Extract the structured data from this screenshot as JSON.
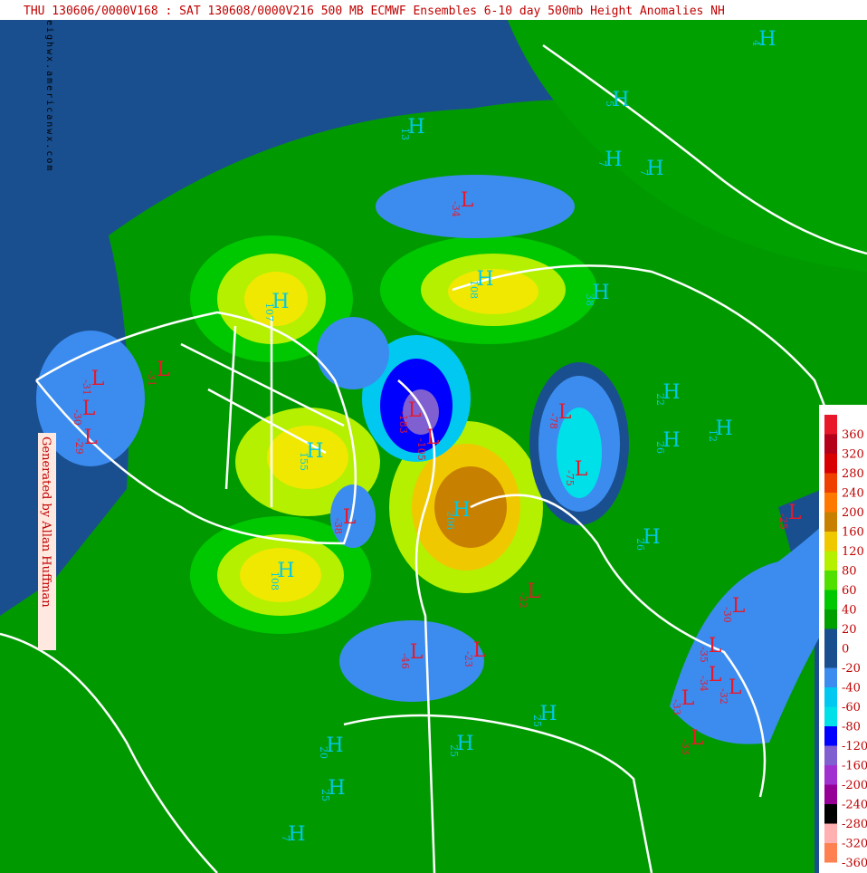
{
  "header": {
    "title": "THU 130606/0000V168 : SAT 130608/0000V216  500 MB ECMWF Ensembles 6-10 day 500mb Height Anomalies NH"
  },
  "credits": {
    "site": "eighwx.americanwx.com",
    "generator": "Generated by Allan Huffman"
  },
  "legend": {
    "levels": [
      {
        "label": 360,
        "color": "#e8182a"
      },
      {
        "label": 320,
        "color": "#b40018"
      },
      {
        "label": 280,
        "color": "#d80000"
      },
      {
        "label": 240,
        "color": "#f04000"
      },
      {
        "label": 200,
        "color": "#ff7800"
      },
      {
        "label": 160,
        "color": "#c88000"
      },
      {
        "label": 120,
        "color": "#f0c800"
      },
      {
        "label": 80,
        "color": "#b4f000"
      },
      {
        "label": 60,
        "color": "#50e000"
      },
      {
        "label": 40,
        "color": "#00c800"
      },
      {
        "label": 20,
        "color": "#00a000"
      },
      {
        "label": 0,
        "color": "#1a4f8f"
      },
      {
        "label": -20,
        "color": "#1a4f8f"
      },
      {
        "label": -40,
        "color": "#3c8cf0"
      },
      {
        "label": -60,
        "color": "#00c8f0"
      },
      {
        "label": -80,
        "color": "#00e0e8"
      },
      {
        "label": -120,
        "color": "#0000ff"
      },
      {
        "label": -160,
        "color": "#8060d0"
      },
      {
        "label": -200,
        "color": "#a030d0"
      },
      {
        "label": -240,
        "color": "#960096"
      },
      {
        "label": -280,
        "color": "#000000"
      },
      {
        "label": -320,
        "color": "#ffb0b0"
      },
      {
        "label": -360,
        "color": "#ff8050"
      }
    ]
  },
  "markers": [
    {
      "symbol": "H",
      "value": 13,
      "color": "#00c8e8"
    },
    {
      "symbol": "H",
      "value": 5,
      "color": "#00c8e8"
    },
    {
      "symbol": "H",
      "value": 7,
      "color": "#00c8e8"
    },
    {
      "symbol": "H",
      "value": 7,
      "color": "#00c8e8"
    },
    {
      "symbol": "L",
      "value": -34,
      "color": "#e8182a"
    },
    {
      "symbol": "H",
      "value": 108,
      "color": "#00c8e8"
    },
    {
      "symbol": "H",
      "value": 107,
      "color": "#00c8e8"
    },
    {
      "symbol": "L",
      "value": -31,
      "color": "#e8182a"
    },
    {
      "symbol": "L",
      "value": -31,
      "color": "#e8182a"
    },
    {
      "symbol": "L",
      "value": -30,
      "color": "#e8182a"
    },
    {
      "symbol": "L",
      "value": -29,
      "color": "#e8182a"
    },
    {
      "symbol": "L",
      "value": -183,
      "color": "#e8182a"
    },
    {
      "symbol": "L",
      "value": -105,
      "color": "#e8182a"
    },
    {
      "symbol": "H",
      "value": 155,
      "color": "#00c8e8"
    },
    {
      "symbol": "L",
      "value": -38,
      "color": "#e8182a"
    },
    {
      "symbol": "H",
      "value": 206,
      "color": "#00c8e8"
    },
    {
      "symbol": "L",
      "value": -78,
      "color": "#e8182a"
    },
    {
      "symbol": "L",
      "value": -75,
      "color": "#e8182a"
    },
    {
      "symbol": "H",
      "value": 108,
      "color": "#00c8e8"
    },
    {
      "symbol": "L",
      "value": -46,
      "color": "#e8182a"
    },
    {
      "symbol": "L",
      "value": -30,
      "color": "#e8182a"
    },
    {
      "symbol": "L",
      "value": -35,
      "color": "#e8182a"
    },
    {
      "symbol": "L",
      "value": -34,
      "color": "#e8182a"
    },
    {
      "symbol": "L",
      "value": -32,
      "color": "#e8182a"
    },
    {
      "symbol": "L",
      "value": -33,
      "color": "#e8182a"
    },
    {
      "symbol": "L",
      "value": -33,
      "color": "#e8182a"
    },
    {
      "symbol": "L",
      "value": -25,
      "color": "#e8182a"
    },
    {
      "symbol": "H",
      "value": 22,
      "color": "#00c8e8"
    },
    {
      "symbol": "H",
      "value": 26,
      "color": "#00c8e8"
    },
    {
      "symbol": "H",
      "value": 26,
      "color": "#00c8e8"
    },
    {
      "symbol": "H",
      "value": 25,
      "color": "#00c8e8"
    },
    {
      "symbol": "H",
      "value": 25,
      "color": "#00c8e8"
    },
    {
      "symbol": "H",
      "value": 20,
      "color": "#00c8e8"
    },
    {
      "symbol": "H",
      "value": 25,
      "color": "#00c8e8"
    },
    {
      "symbol": "H",
      "value": 7,
      "color": "#00c8e8"
    },
    {
      "symbol": "H",
      "value": 4,
      "color": "#00c8e8"
    },
    {
      "symbol": "L",
      "value": -22,
      "color": "#e8182a"
    },
    {
      "symbol": "L",
      "value": -23,
      "color": "#e8182a"
    },
    {
      "symbol": "H",
      "value": 38,
      "color": "#00c8e8"
    },
    {
      "symbol": "H",
      "value": 12,
      "color": "#00c8e8"
    }
  ]
}
